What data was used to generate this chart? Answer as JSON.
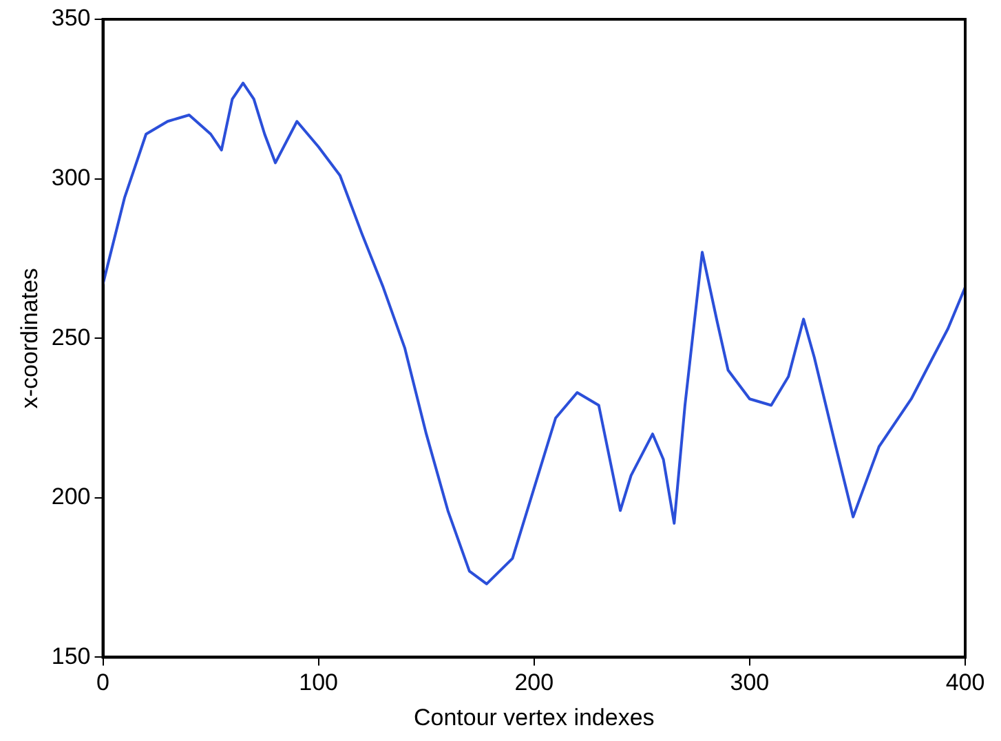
{
  "chart_data": {
    "type": "line",
    "xlabel": "Contour vertex indexes",
    "ylabel": "x-coordinates",
    "xlim": [
      0,
      400
    ],
    "xticks": [
      0,
      100,
      200,
      300,
      400
    ],
    "ylim": [
      150,
      350
    ],
    "yticks": [
      150,
      200,
      250,
      300,
      350
    ],
    "grid": false,
    "legend": false,
    "marker": "none",
    "line_style": "solid",
    "series": [
      {
        "color": "#2b4fd9",
        "x": [
          0,
          10,
          20,
          30,
          40,
          50,
          55,
          60,
          65,
          70,
          75,
          80,
          90,
          100,
          110,
          120,
          130,
          140,
          150,
          160,
          170,
          178,
          190,
          200,
          210,
          220,
          230,
          240,
          245,
          255,
          260,
          265,
          270,
          278,
          285,
          290,
          300,
          310,
          318,
          325,
          330,
          340,
          348,
          360,
          375,
          385,
          392,
          400
        ],
        "values": [
          267,
          294,
          314,
          318,
          320,
          314,
          309,
          325,
          330,
          325,
          314,
          305,
          318,
          310,
          301,
          283,
          266,
          247,
          220,
          196,
          177,
          173,
          181,
          203,
          225,
          233,
          229,
          196,
          207,
          220,
          212,
          192,
          229,
          277,
          255,
          240,
          231,
          229,
          238,
          256,
          244,
          216,
          194,
          216,
          231,
          244,
          253,
          266
        ]
      }
    ]
  }
}
